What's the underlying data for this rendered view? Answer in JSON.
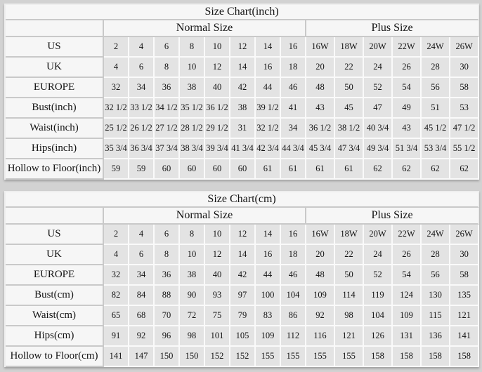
{
  "page": {
    "background": "#d2d2d2"
  },
  "colors": {
    "cell_label_bg": "#f6f6f6",
    "cell_data_bg": "#e3e3e3",
    "grid_gray": "#c9c9c9",
    "grid_white": "#fafafa",
    "text": "#141414"
  },
  "chart_data": [
    {
      "type": "table",
      "title": "Size Chart(inch)",
      "group_headers": [
        {
          "label": "Normal Size",
          "span": 8
        },
        {
          "label": "Plus Size",
          "span": 6
        }
      ],
      "rows": [
        {
          "label": "US",
          "values": [
            "2",
            "4",
            "6",
            "8",
            "10",
            "12",
            "14",
            "16",
            "16W",
            "18W",
            "20W",
            "22W",
            "24W",
            "26W"
          ]
        },
        {
          "label": "UK",
          "values": [
            "4",
            "6",
            "8",
            "10",
            "12",
            "14",
            "16",
            "18",
            "20",
            "22",
            "24",
            "26",
            "28",
            "30"
          ]
        },
        {
          "label": "EUROPE",
          "values": [
            "32",
            "34",
            "36",
            "38",
            "40",
            "42",
            "44",
            "46",
            "48",
            "50",
            "52",
            "54",
            "56",
            "58"
          ]
        },
        {
          "label": "Bust(inch)",
          "values": [
            "32 1/2",
            "33 1/2",
            "34 1/2",
            "35 1/2",
            "36 1/2",
            "38",
            "39 1/2",
            "41",
            "43",
            "45",
            "47",
            "49",
            "51",
            "53"
          ]
        },
        {
          "label": "Waist(inch)",
          "values": [
            "25 1/2",
            "26 1/2",
            "27 1/2",
            "28 1/2",
            "29 1/2",
            "31",
            "32 1/2",
            "34",
            "36 1/2",
            "38 1/2",
            "40 3/4",
            "43",
            "45 1/2",
            "47 1/2"
          ]
        },
        {
          "label": "Hips(inch)",
          "values": [
            "35 3/4",
            "36 3/4",
            "37 3/4",
            "38 3/4",
            "39 3/4",
            "41 3/4",
            "42 3/4",
            "44 3/4",
            "45 3/4",
            "47 3/4",
            "49 3/4",
            "51 3/4",
            "53 3/4",
            "55 1/2"
          ]
        },
        {
          "label": "Hollow to Floor(inch)",
          "values": [
            "59",
            "59",
            "60",
            "60",
            "60",
            "60",
            "61",
            "61",
            "61",
            "61",
            "62",
            "62",
            "62",
            "62"
          ]
        }
      ]
    },
    {
      "type": "table",
      "title": "Size Chart(cm)",
      "group_headers": [
        {
          "label": "Normal Size",
          "span": 8
        },
        {
          "label": "Plus Size",
          "span": 6
        }
      ],
      "rows": [
        {
          "label": "US",
          "values": [
            "2",
            "4",
            "6",
            "8",
            "10",
            "12",
            "14",
            "16",
            "16W",
            "18W",
            "20W",
            "22W",
            "24W",
            "26W"
          ]
        },
        {
          "label": "UK",
          "values": [
            "4",
            "6",
            "8",
            "10",
            "12",
            "14",
            "16",
            "18",
            "20",
            "22",
            "24",
            "26",
            "28",
            "30"
          ]
        },
        {
          "label": "EUROPE",
          "values": [
            "32",
            "34",
            "36",
            "38",
            "40",
            "42",
            "44",
            "46",
            "48",
            "50",
            "52",
            "54",
            "56",
            "58"
          ]
        },
        {
          "label": "Bust(cm)",
          "values": [
            "82",
            "84",
            "88",
            "90",
            "93",
            "97",
            "100",
            "104",
            "109",
            "114",
            "119",
            "124",
            "130",
            "135"
          ]
        },
        {
          "label": "Waist(cm)",
          "values": [
            "65",
            "68",
            "70",
            "72",
            "75",
            "79",
            "83",
            "86",
            "92",
            "98",
            "104",
            "109",
            "115",
            "121"
          ]
        },
        {
          "label": "Hips(cm)",
          "values": [
            "91",
            "92",
            "96",
            "98",
            "101",
            "105",
            "109",
            "112",
            "116",
            "121",
            "126",
            "131",
            "136",
            "141"
          ]
        },
        {
          "label": "Hollow to Floor(cm)",
          "values": [
            "141",
            "147",
            "150",
            "150",
            "152",
            "152",
            "155",
            "155",
            "155",
            "155",
            "158",
            "158",
            "158",
            "158"
          ]
        }
      ]
    }
  ]
}
